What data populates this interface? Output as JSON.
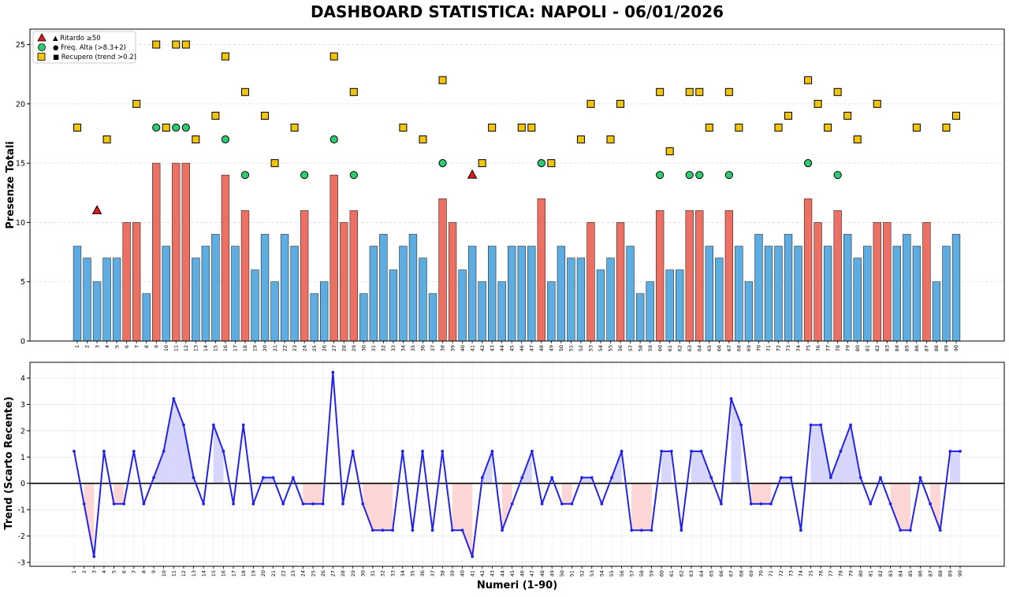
{
  "title": "DASHBOARD STATISTICA: NAPOLI - 06/01/2026",
  "colors": {
    "bar_normal": "#5dade2",
    "bar_high": "#ec7063",
    "ritardo": "#e31a1c",
    "freq": "#2ecc71",
    "recupero": "#f1c40f",
    "trend_line": "#2323e8",
    "fill_pos": "#c8c8ff",
    "fill_neg": "#ffc8c8"
  },
  "chart_data": [
    {
      "type": "bar",
      "ylabel": "Presenze Totali",
      "xlabel": "",
      "ylim": [
        0,
        26.3
      ],
      "yticks": [
        0,
        5,
        10,
        15,
        20,
        25
      ],
      "categories": [
        "1",
        "2",
        "3",
        "4",
        "5",
        "6",
        "7",
        "8",
        "9",
        "10",
        "11",
        "12",
        "13",
        "14",
        "15",
        "16",
        "17",
        "18",
        "19",
        "20",
        "21",
        "22",
        "23",
        "24",
        "25",
        "26",
        "27",
        "28",
        "29",
        "30",
        "31",
        "32",
        "33",
        "34",
        "35",
        "36",
        "37",
        "38",
        "39",
        "40",
        "41",
        "42",
        "43",
        "44",
        "45",
        "46",
        "47",
        "48",
        "49",
        "50",
        "51",
        "52",
        "53",
        "54",
        "55",
        "56",
        "57",
        "58",
        "59",
        "60",
        "61",
        "62",
        "63",
        "64",
        "65",
        "66",
        "67",
        "68",
        "69",
        "70",
        "71",
        "72",
        "73",
        "74",
        "75",
        "76",
        "77",
        "78",
        "79",
        "80",
        "81",
        "82",
        "83",
        "84",
        "85",
        "86",
        "87",
        "88",
        "89",
        "90"
      ],
      "values": [
        8,
        7,
        5,
        7,
        7,
        10,
        10,
        4,
        15,
        8,
        15,
        15,
        7,
        8,
        9,
        14,
        8,
        11,
        6,
        9,
        5,
        9,
        8,
        11,
        4,
        5,
        14,
        10,
        11,
        4,
        8,
        9,
        6,
        8,
        9,
        7,
        4,
        12,
        10,
        6,
        8,
        5,
        8,
        5,
        8,
        8,
        8,
        12,
        5,
        8,
        7,
        7,
        10,
        6,
        7,
        10,
        8,
        4,
        5,
        11,
        6,
        6,
        11,
        11,
        8,
        7,
        11,
        8,
        5,
        9,
        8,
        8,
        9,
        8,
        12,
        10,
        8,
        11,
        9,
        7,
        8,
        10,
        10,
        8,
        9,
        8,
        10,
        5,
        8,
        9
      ],
      "high_threshold": 9,
      "legend_position": "upper-left",
      "legend": [
        {
          "label": "▲ Ritardo ≥50",
          "marker": "triangle"
        },
        {
          "label": "● Freq. Alta (>8.3+2)",
          "marker": "circle"
        },
        {
          "label": "■ Recupero (trend >0.2)",
          "marker": "square"
        }
      ],
      "ritardo": [
        {
          "x": 3,
          "y": 11
        },
        {
          "x": 41,
          "y": 14
        }
      ],
      "freq_alta": [
        {
          "x": 9,
          "y": 18
        },
        {
          "x": 11,
          "y": 18
        },
        {
          "x": 12,
          "y": 18
        },
        {
          "x": 16,
          "y": 17
        },
        {
          "x": 18,
          "y": 14
        },
        {
          "x": 24,
          "y": 14
        },
        {
          "x": 27,
          "y": 17
        },
        {
          "x": 29,
          "y": 14
        },
        {
          "x": 38,
          "y": 15
        },
        {
          "x": 48,
          "y": 15
        },
        {
          "x": 60,
          "y": 14
        },
        {
          "x": 63,
          "y": 14
        },
        {
          "x": 64,
          "y": 14
        },
        {
          "x": 67,
          "y": 14
        },
        {
          "x": 75,
          "y": 15
        },
        {
          "x": 78,
          "y": 14
        }
      ],
      "recupero": [
        {
          "x": 1,
          "y": 18
        },
        {
          "x": 4,
          "y": 17
        },
        {
          "x": 7,
          "y": 20
        },
        {
          "x": 9,
          "y": 25
        },
        {
          "x": 10,
          "y": 18
        },
        {
          "x": 11,
          "y": 25
        },
        {
          "x": 12,
          "y": 25
        },
        {
          "x": 13,
          "y": 17
        },
        {
          "x": 15,
          "y": 19
        },
        {
          "x": 16,
          "y": 24
        },
        {
          "x": 18,
          "y": 21
        },
        {
          "x": 20,
          "y": 19
        },
        {
          "x": 21,
          "y": 15
        },
        {
          "x": 23,
          "y": 18
        },
        {
          "x": 27,
          "y": 24
        },
        {
          "x": 29,
          "y": 21
        },
        {
          "x": 34,
          "y": 18
        },
        {
          "x": 36,
          "y": 17
        },
        {
          "x": 38,
          "y": 22
        },
        {
          "x": 42,
          "y": 15
        },
        {
          "x": 43,
          "y": 18
        },
        {
          "x": 46,
          "y": 18
        },
        {
          "x": 47,
          "y": 18
        },
        {
          "x": 49,
          "y": 15
        },
        {
          "x": 52,
          "y": 17
        },
        {
          "x": 53,
          "y": 20
        },
        {
          "x": 55,
          "y": 17
        },
        {
          "x": 56,
          "y": 20
        },
        {
          "x": 60,
          "y": 21
        },
        {
          "x": 61,
          "y": 16
        },
        {
          "x": 63,
          "y": 21
        },
        {
          "x": 64,
          "y": 21
        },
        {
          "x": 65,
          "y": 18
        },
        {
          "x": 67,
          "y": 21
        },
        {
          "x": 68,
          "y": 18
        },
        {
          "x": 72,
          "y": 18
        },
        {
          "x": 73,
          "y": 19
        },
        {
          "x": 75,
          "y": 22
        },
        {
          "x": 76,
          "y": 20
        },
        {
          "x": 77,
          "y": 18
        },
        {
          "x": 78,
          "y": 21
        },
        {
          "x": 79,
          "y": 19
        },
        {
          "x": 80,
          "y": 17
        },
        {
          "x": 82,
          "y": 20
        },
        {
          "x": 86,
          "y": 18
        },
        {
          "x": 89,
          "y": 18
        },
        {
          "x": 90,
          "y": 19
        }
      ]
    },
    {
      "type": "line",
      "ylabel": "Trend (Scarto Recente)",
      "xlabel": "Numeri (1-90)",
      "ylim": [
        -3.15,
        4.6
      ],
      "yticks": [
        -3,
        -2,
        -1,
        0,
        1,
        2,
        3,
        4
      ],
      "grid": true,
      "x": [
        1,
        2,
        3,
        4,
        5,
        6,
        7,
        8,
        9,
        10,
        11,
        12,
        13,
        14,
        15,
        16,
        17,
        18,
        19,
        20,
        21,
        22,
        23,
        24,
        25,
        26,
        27,
        28,
        29,
        30,
        31,
        32,
        33,
        34,
        35,
        36,
        37,
        38,
        39,
        40,
        41,
        42,
        43,
        44,
        45,
        46,
        47,
        48,
        49,
        50,
        51,
        52,
        53,
        54,
        55,
        56,
        57,
        58,
        59,
        60,
        61,
        62,
        63,
        64,
        65,
        66,
        67,
        68,
        69,
        70,
        71,
        72,
        73,
        74,
        75,
        76,
        77,
        78,
        79,
        80,
        81,
        82,
        83,
        84,
        85,
        86,
        87,
        88,
        89,
        90
      ],
      "values": [
        1.22,
        -0.78,
        -2.78,
        1.22,
        -0.78,
        -0.78,
        1.22,
        -0.78,
        0.22,
        1.22,
        3.22,
        2.22,
        0.22,
        -0.78,
        2.22,
        1.22,
        -0.78,
        2.22,
        -0.78,
        0.22,
        0.22,
        -0.78,
        0.22,
        -0.78,
        -0.78,
        -0.78,
        4.22,
        -0.78,
        1.22,
        -0.78,
        -1.78,
        -1.78,
        -1.78,
        1.22,
        -1.78,
        1.22,
        -1.78,
        1.22,
        -1.78,
        -1.78,
        -2.78,
        0.22,
        1.22,
        -1.78,
        -0.78,
        0.22,
        1.22,
        -0.78,
        0.22,
        -0.78,
        -0.78,
        0.22,
        0.22,
        -0.78,
        0.22,
        1.22,
        -1.78,
        -1.78,
        -1.78,
        1.22,
        1.22,
        -1.78,
        1.22,
        1.22,
        0.22,
        -0.78,
        3.22,
        2.22,
        -0.78,
        -0.78,
        -0.78,
        0.22,
        0.22,
        -1.78,
        2.22,
        2.22,
        0.22,
        1.22,
        2.22,
        0.22,
        -0.78,
        0.22,
        -0.78,
        -1.78,
        -1.78,
        0.22,
        -0.78,
        -1.78,
        1.22,
        1.22
      ]
    }
  ]
}
